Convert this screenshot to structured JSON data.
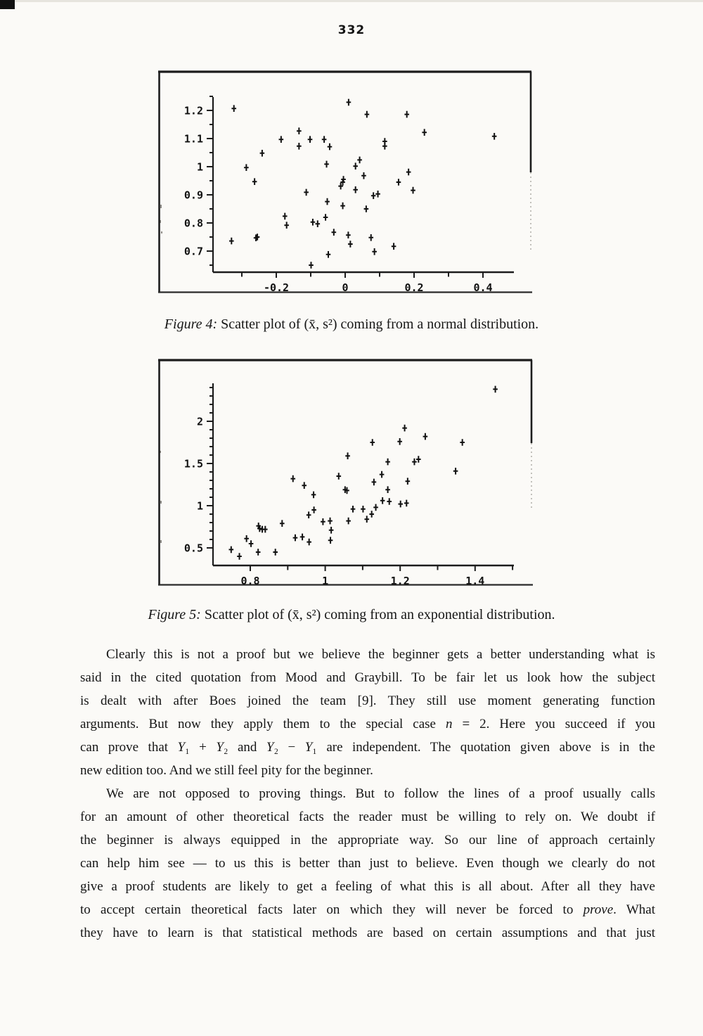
{
  "page": {
    "number": "332"
  },
  "figures": [
    {
      "caption_prefix": "Figure 4:",
      "caption_text": " Scatter plot of (x̄, s²) coming from a normal distribution."
    },
    {
      "caption_prefix": "Figure 5:",
      "caption_text": " Scatter plot of (x̄, s²) coming from an exponential distribution."
    }
  ],
  "chart_data": [
    {
      "type": "scatter",
      "figure": "Figure 4",
      "marker": "plus",
      "grid": false,
      "xlim": [
        -0.38,
        0.49
      ],
      "ylim": [
        0.63,
        1.25
      ],
      "xlabel": "",
      "ylabel": "",
      "x_axis": {
        "ticks": {
          "from": -0.3,
          "to": 0.4,
          "step": 0.1
        },
        "labels": [
          {
            "v": -0.2,
            "t": "-0.2"
          },
          {
            "v": 0,
            "t": "0"
          },
          {
            "v": 0.2,
            "t": "0.2"
          },
          {
            "v": 0.4,
            "t": "0.4"
          }
        ]
      },
      "y_axis": {
        "ticks": {
          "from": 0.65,
          "to": 1.25,
          "step": 0.05
        },
        "labels": [
          {
            "v": 1.2,
            "t": "1.2"
          },
          {
            "v": 1.1,
            "t": "1.1"
          },
          {
            "v": 1.0,
            "t": "1"
          },
          {
            "v": 0.9,
            "t": "0.9"
          },
          {
            "v": 0.8,
            "t": "0.8"
          },
          {
            "v": 0.7,
            "t": "0.7"
          }
        ]
      },
      "points": [
        [
          -0.323,
          1.207
        ],
        [
          0.01,
          1.229
        ],
        [
          0.063,
          1.186
        ],
        [
          0.179,
          1.186
        ],
        [
          -0.134,
          1.127
        ],
        [
          0.23,
          1.122
        ],
        [
          0.433,
          1.108
        ],
        [
          -0.186,
          1.097
        ],
        [
          -0.102,
          1.097
        ],
        [
          -0.061,
          1.097
        ],
        [
          0.115,
          1.09
        ],
        [
          0.115,
          1.073
        ],
        [
          -0.134,
          1.073
        ],
        [
          -0.045,
          1.071
        ],
        [
          -0.241,
          1.048
        ],
        [
          0.042,
          1.024
        ],
        [
          -0.054,
          1.009
        ],
        [
          0.03,
          1.002
        ],
        [
          -0.287,
          0.997
        ],
        [
          0.184,
          0.981
        ],
        [
          0.054,
          0.968
        ],
        [
          -0.263,
          0.947
        ],
        [
          -0.005,
          0.955
        ],
        [
          -0.007,
          0.945
        ],
        [
          0.155,
          0.945
        ],
        [
          -0.013,
          0.931
        ],
        [
          0.03,
          0.918
        ],
        [
          0.197,
          0.916
        ],
        [
          -0.113,
          0.909
        ],
        [
          0.082,
          0.897
        ],
        [
          0.095,
          0.903
        ],
        [
          -0.052,
          0.876
        ],
        [
          -0.007,
          0.861
        ],
        [
          0.061,
          0.85
        ],
        [
          -0.175,
          0.824
        ],
        [
          -0.057,
          0.82
        ],
        [
          -0.094,
          0.803
        ],
        [
          -0.08,
          0.797
        ],
        [
          -0.17,
          0.792
        ],
        [
          -0.033,
          0.767
        ],
        [
          0.009,
          0.757
        ],
        [
          0.075,
          0.748
        ],
        [
          -0.259,
          0.747
        ],
        [
          -0.255,
          0.75
        ],
        [
          -0.33,
          0.736
        ],
        [
          0.015,
          0.725
        ],
        [
          0.141,
          0.717
        ],
        [
          0.085,
          0.698
        ],
        [
          -0.049,
          0.688
        ],
        [
          -0.099,
          0.65
        ]
      ]
    },
    {
      "type": "scatter",
      "figure": "Figure 5",
      "marker": "plus",
      "grid": false,
      "xlim": [
        0.7,
        1.5
      ],
      "ylim": [
        0.29,
        2.45
      ],
      "xlabel": "",
      "ylabel": "",
      "x_axis": {
        "ticks": {
          "from": 0.8,
          "to": 1.5,
          "step": 0.1
        },
        "labels": [
          {
            "v": 0.8,
            "t": "0.8"
          },
          {
            "v": 1.0,
            "t": "1"
          },
          {
            "v": 1.2,
            "t": "1.2"
          },
          {
            "v": 1.4,
            "t": "1.4"
          }
        ]
      },
      "y_axis": {
        "ticks": {
          "from": 0.5,
          "to": 2.4,
          "step": 0.1
        },
        "labels": [
          {
            "v": 2.0,
            "t": "2"
          },
          {
            "v": 1.5,
            "t": "1.5"
          },
          {
            "v": 1.0,
            "t": "1"
          },
          {
            "v": 0.5,
            "t": "0.5"
          }
        ]
      },
      "points": [
        [
          1.454,
          2.38
        ],
        [
          1.212,
          1.92
        ],
        [
          1.267,
          1.82
        ],
        [
          1.199,
          1.76
        ],
        [
          1.126,
          1.75
        ],
        [
          1.366,
          1.75
        ],
        [
          1.06,
          1.59
        ],
        [
          1.249,
          1.55
        ],
        [
          1.167,
          1.52
        ],
        [
          1.238,
          1.52
        ],
        [
          1.348,
          1.41
        ],
        [
          1.151,
          1.37
        ],
        [
          1.036,
          1.35
        ],
        [
          0.914,
          1.32
        ],
        [
          1.22,
          1.29
        ],
        [
          1.13,
          1.28
        ],
        [
          0.944,
          1.24
        ],
        [
          1.167,
          1.19
        ],
        [
          1.053,
          1.19
        ],
        [
          1.058,
          1.18
        ],
        [
          0.969,
          1.13
        ],
        [
          1.153,
          1.06
        ],
        [
          1.171,
          1.05
        ],
        [
          1.201,
          1.02
        ],
        [
          1.217,
          1.03
        ],
        [
          0.97,
          0.95
        ],
        [
          1.074,
          0.96
        ],
        [
          1.101,
          0.96
        ],
        [
          1.135,
          0.98
        ],
        [
          0.956,
          0.89
        ],
        [
          1.124,
          0.9
        ],
        [
          1.111,
          0.84
        ],
        [
          1.062,
          0.82
        ],
        [
          0.994,
          0.81
        ],
        [
          1.013,
          0.82
        ],
        [
          0.885,
          0.79
        ],
        [
          0.822,
          0.76
        ],
        [
          0.825,
          0.73
        ],
        [
          0.832,
          0.72
        ],
        [
          0.84,
          0.72
        ],
        [
          1.016,
          0.71
        ],
        [
          0.92,
          0.62
        ],
        [
          0.939,
          0.63
        ],
        [
          0.957,
          0.57
        ],
        [
          1.014,
          0.59
        ],
        [
          0.79,
          0.61
        ],
        [
          0.802,
          0.55
        ],
        [
          0.821,
          0.45
        ],
        [
          0.867,
          0.45
        ],
        [
          0.749,
          0.48
        ],
        [
          0.771,
          0.4
        ]
      ]
    }
  ],
  "paragraphs": [
    {
      "lines": [
        {
          "text": "Clearly this is not a proof but we believe the beginner gets a better understanding what is",
          "indent": true
        },
        {
          "text": "said in the cited quotation from Mood and Graybill. To be fair let us look how the subject"
        },
        {
          "text": "is dealt with after Boes joined the team [9]. They still use moment generating function"
        },
        {
          "text": "arguments. But now they apply them to the special case *n* = 2. Here you succeed if you"
        },
        {
          "text": "can prove that *Y*₁ + *Y*₂ and *Y*₂ − *Y*₁ are independent. The quotation given above is in the"
        },
        {
          "text": "new edition too. And we still feel pity for the beginner.",
          "short": true
        }
      ]
    },
    {
      "lines": [
        {
          "text": "We are not opposed to proving things. But to follow the lines of a proof usually calls",
          "indent": true
        },
        {
          "text": "for an amount of other theoretical facts the reader must be willing to rely on. We doubt if"
        },
        {
          "text": "the beginner is always equipped in the appropriate way. So our line of approach certainly"
        },
        {
          "text": "can help him see — to us this is better than just to believe. Even though we clearly do not"
        },
        {
          "text": "give a proof students are likely to get a feeling of what this is all about. After all they have"
        },
        {
          "text": "to accept certain theoretical facts later on which they will never be forced to *prove*. What"
        },
        {
          "text": "they have to learn is that statistical methods are based on certain assumptions and that just"
        }
      ]
    }
  ]
}
